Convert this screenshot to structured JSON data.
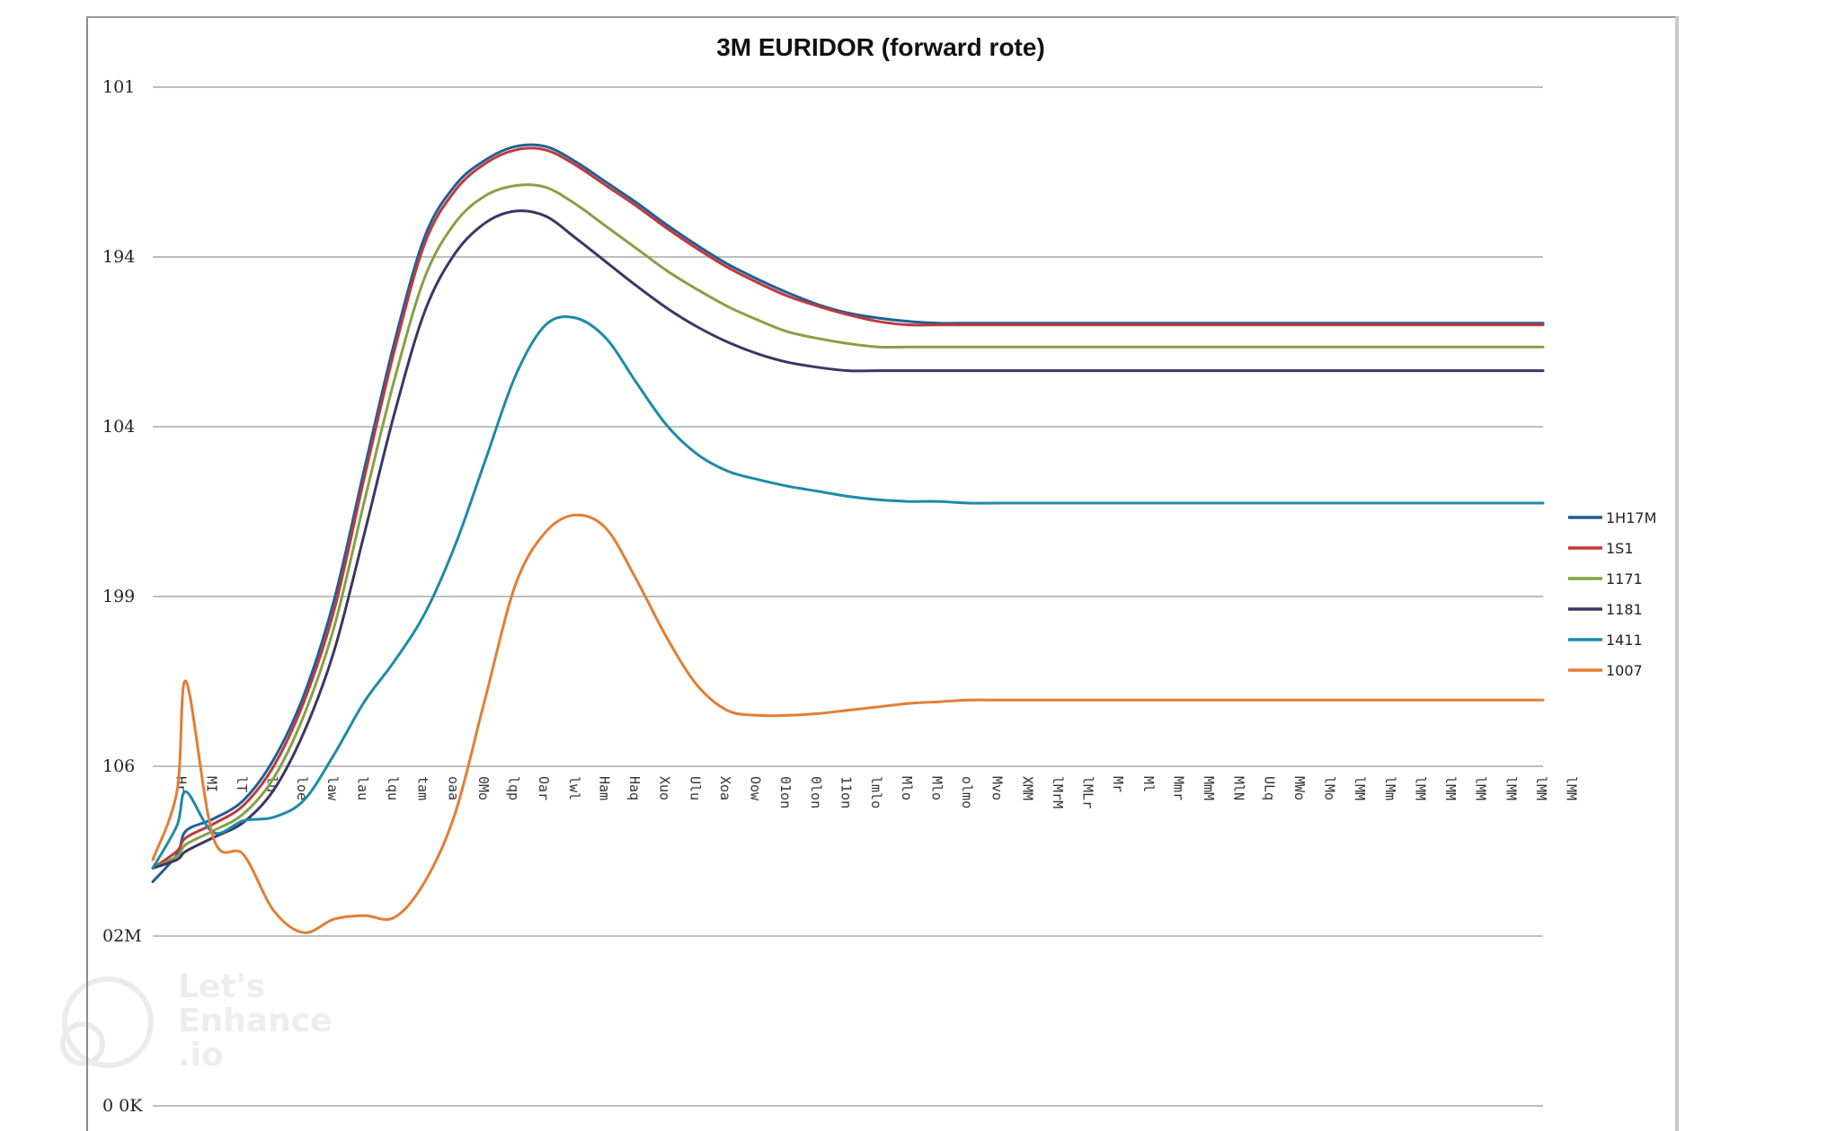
{
  "chart_data": {
    "type": "line",
    "title": "3M EURIDOR (forward rote)",
    "y_tick_labels": [
      "101",
      "194",
      "104",
      "199",
      "106",
      "02M",
      "0 0K"
    ],
    "x_tick_labels": [
      "Hr",
      "MI",
      "lT",
      "lu",
      "loe",
      "law",
      "lau",
      "lqu",
      "tam",
      "oaa",
      "0Mo",
      "lqp",
      "Oar",
      "lwl",
      "Ham",
      "Haq",
      "Xuo",
      "Ulu",
      "Xoa",
      "Oow",
      "01on",
      "0lon",
      "11on",
      "lmlo",
      "Mlo",
      "Mlo",
      "olmo",
      "Mvo",
      "XMM",
      "lMrM",
      "lMLr",
      "Mr",
      "Ml",
      "Mmr",
      "MmM",
      "MlN",
      "ULq",
      "MWo",
      "lMo",
      "lMM",
      "lMm",
      "lMM",
      "lMM",
      "lMM",
      "lMM",
      "lMM",
      "lMM"
    ],
    "x": [
      0,
      0.8,
      1.1,
      2,
      3,
      4,
      5,
      6,
      7,
      8,
      9,
      10,
      11,
      12,
      13,
      14,
      15,
      16,
      17,
      18,
      19,
      20,
      21,
      22,
      23,
      24,
      25,
      26,
      27,
      28,
      29,
      30,
      31,
      32,
      33,
      34,
      35,
      36,
      37,
      38,
      39,
      40,
      41,
      42,
      43,
      44,
      45,
      46
    ],
    "ylim": [
      0,
      6
    ],
    "grid": true,
    "legend": "right",
    "series": [
      {
        "name": "1H17M",
        "color": "#1f5f96",
        "values": [
          1.32,
          1.48,
          1.62,
          1.69,
          1.8,
          2.04,
          2.42,
          2.98,
          3.75,
          4.5,
          5.12,
          5.42,
          5.57,
          5.65,
          5.65,
          5.56,
          5.44,
          5.32,
          5.19,
          5.07,
          4.96,
          4.87,
          4.79,
          4.72,
          4.67,
          4.64,
          4.62,
          4.61,
          4.61,
          4.61,
          4.61,
          4.61,
          4.61,
          4.61,
          4.61,
          4.61,
          4.61,
          4.61,
          4.61,
          4.61,
          4.61,
          4.61,
          4.61,
          4.61,
          4.61,
          4.61,
          4.61,
          4.61
        ]
      },
      {
        "name": "1S1",
        "color": "#c0393b",
        "values": [
          1.4,
          1.5,
          1.58,
          1.66,
          1.77,
          2.0,
          2.38,
          2.92,
          3.7,
          4.45,
          5.08,
          5.39,
          5.55,
          5.63,
          5.63,
          5.54,
          5.42,
          5.3,
          5.17,
          5.05,
          4.94,
          4.85,
          4.77,
          4.71,
          4.66,
          4.62,
          4.6,
          4.6,
          4.6,
          4.6,
          4.6,
          4.6,
          4.6,
          4.6,
          4.6,
          4.6,
          4.6,
          4.6,
          4.6,
          4.6,
          4.6,
          4.6,
          4.6,
          4.6,
          4.6,
          4.6,
          4.6,
          4.6
        ]
      },
      {
        "name": "1171",
        "color": "#86a143",
        "values": [
          1.4,
          1.47,
          1.54,
          1.62,
          1.72,
          1.93,
          2.3,
          2.82,
          3.56,
          4.28,
          4.88,
          5.2,
          5.36,
          5.42,
          5.41,
          5.31,
          5.18,
          5.05,
          4.92,
          4.81,
          4.71,
          4.63,
          4.56,
          4.52,
          4.49,
          4.47,
          4.47,
          4.47,
          4.47,
          4.47,
          4.47,
          4.47,
          4.47,
          4.47,
          4.47,
          4.47,
          4.47,
          4.47,
          4.47,
          4.47,
          4.47,
          4.47,
          4.47,
          4.47,
          4.47,
          4.47,
          4.47,
          4.47
        ]
      },
      {
        "name": "1181",
        "color": "#3d3467",
        "values": [
          1.4,
          1.45,
          1.5,
          1.58,
          1.67,
          1.86,
          2.2,
          2.68,
          3.37,
          4.08,
          4.68,
          5.02,
          5.2,
          5.27,
          5.24,
          5.11,
          4.97,
          4.83,
          4.7,
          4.59,
          4.5,
          4.43,
          4.38,
          4.35,
          4.33,
          4.33,
          4.33,
          4.33,
          4.33,
          4.33,
          4.33,
          4.33,
          4.33,
          4.33,
          4.33,
          4.33,
          4.33,
          4.33,
          4.33,
          4.33,
          4.33,
          4.33,
          4.33,
          4.33,
          4.33,
          4.33,
          4.33,
          4.33
        ]
      },
      {
        "name": "1411",
        "color": "#1d8aa8",
        "values": [
          1.4,
          1.65,
          1.85,
          1.61,
          1.68,
          1.7,
          1.8,
          2.07,
          2.38,
          2.62,
          2.9,
          3.3,
          3.8,
          4.3,
          4.6,
          4.64,
          4.52,
          4.26,
          4.01,
          3.84,
          3.74,
          3.69,
          3.65,
          3.62,
          3.59,
          3.57,
          3.56,
          3.56,
          3.55,
          3.55,
          3.55,
          3.55,
          3.55,
          3.55,
          3.55,
          3.55,
          3.55,
          3.55,
          3.55,
          3.55,
          3.55,
          3.55,
          3.55,
          3.55,
          3.55,
          3.55,
          3.55,
          3.55
        ]
      },
      {
        "name": "1007",
        "color": "#e37d34",
        "values": [
          1.45,
          1.85,
          2.5,
          1.58,
          1.48,
          1.15,
          1.02,
          1.1,
          1.12,
          1.11,
          1.32,
          1.72,
          2.4,
          3.07,
          3.38,
          3.48,
          3.4,
          3.1,
          2.76,
          2.48,
          2.33,
          2.3,
          2.3,
          2.31,
          2.33,
          2.35,
          2.37,
          2.38,
          2.39,
          2.39,
          2.39,
          2.39,
          2.39,
          2.39,
          2.39,
          2.39,
          2.39,
          2.39,
          2.39,
          2.39,
          2.39,
          2.39,
          2.39,
          2.39,
          2.39,
          2.39,
          2.39,
          2.39
        ]
      }
    ]
  },
  "watermark": {
    "line1": "Let's",
    "line2": "Enhance",
    "line3": ".io"
  }
}
